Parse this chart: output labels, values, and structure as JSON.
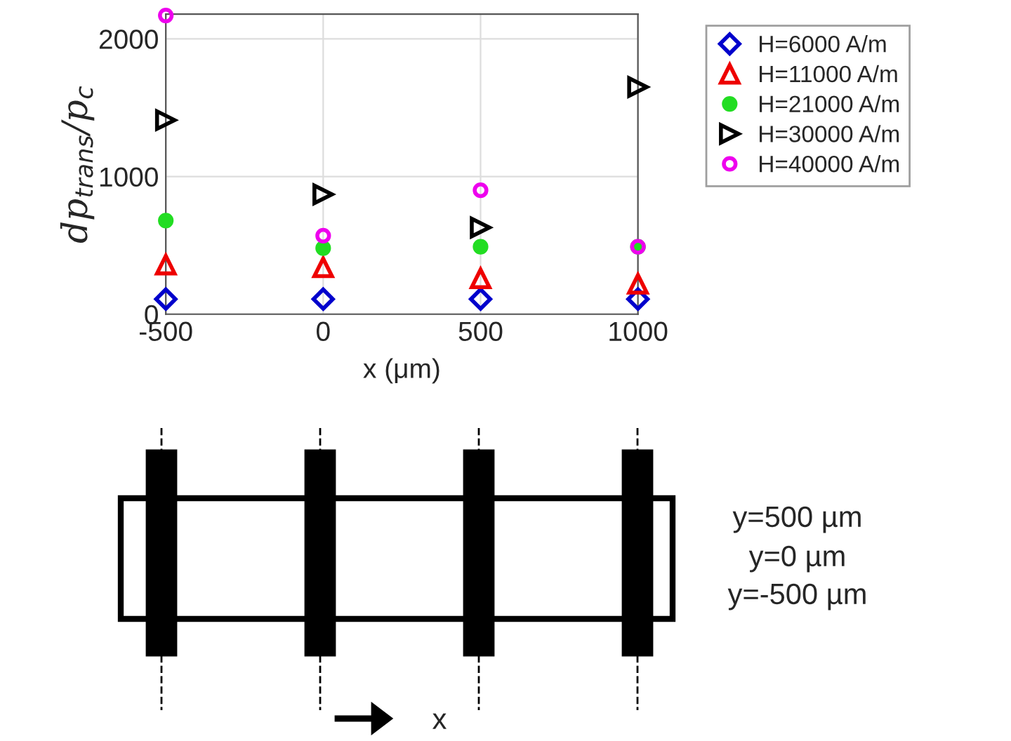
{
  "chart_data": {
    "type": "scatter",
    "xlabel": "x (μm)",
    "ylabel": "dp$_{trans}$/p$_{c}$",
    "x": [
      -500,
      0,
      500,
      1000
    ],
    "series": [
      {
        "name": "H=6000 A/m",
        "color": "#0000cc",
        "marker": "diamond",
        "values": [
          110,
          110,
          110,
          110
        ]
      },
      {
        "name": "H=11000 A/m",
        "color": "#ee0000",
        "marker": "triangle",
        "values": [
          360,
          340,
          260,
          220
        ]
      },
      {
        "name": "H=21000 A/m",
        "color": "#22dd22",
        "marker": "circle",
        "values": [
          680,
          480,
          490,
          490
        ]
      },
      {
        "name": "H=30000 A/m",
        "color": "#000000",
        "marker": "triangle",
        "values": [
          1410,
          870,
          630,
          1650
        ]
      },
      {
        "name": "H=40000 A/m",
        "color": "#ee00ee",
        "marker": "circle",
        "values": [
          2170,
          570,
          900,
          490
        ]
      }
    ],
    "xlim": [
      -500,
      1000
    ],
    "xticks": [
      -500,
      0,
      500,
      1000
    ],
    "ylim": [
      0,
      2180
    ],
    "yticks": [
      0,
      1000,
      2000
    ],
    "grid": true,
    "legend": "top right",
    "annotations": [
      "y=500 µm",
      "y=0 µm",
      "y=-500 µm",
      "x"
    ]
  }
}
